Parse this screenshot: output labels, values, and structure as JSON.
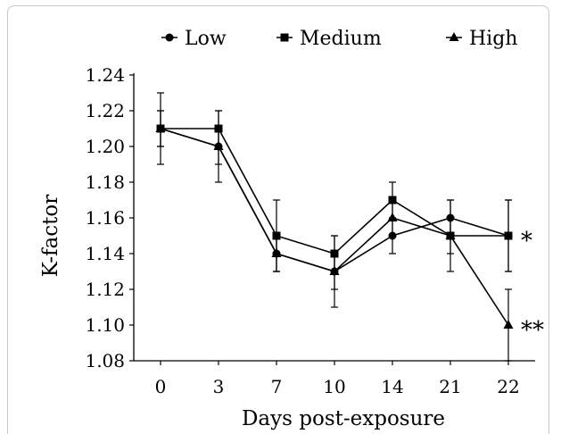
{
  "chart_data": {
    "type": "line",
    "xlabel": "Days post-exposure",
    "ylabel": "K-factor",
    "categories": [
      "0",
      "3",
      "7",
      "10",
      "14",
      "21",
      "22"
    ],
    "ylim": [
      1.08,
      1.24
    ],
    "yticks": [
      "1.08",
      "1.10",
      "1.12",
      "1.14",
      "1.16",
      "1.18",
      "1.20",
      "1.22",
      "1.24"
    ],
    "legend_position": "top",
    "series": [
      {
        "name": "Low",
        "marker": "circle",
        "values": [
          1.21,
          1.2,
          1.14,
          1.13,
          1.15,
          1.16,
          1.15
        ],
        "errors": [
          0.02,
          0.02,
          0.01,
          0.02,
          0.01,
          0.01,
          0.02
        ]
      },
      {
        "name": "Medium",
        "marker": "square",
        "values": [
          1.21,
          1.21,
          1.15,
          1.14,
          1.17,
          1.15,
          1.15
        ],
        "errors": [
          0.01,
          0.01,
          0.02,
          0.01,
          0.01,
          0.02,
          0.02
        ]
      },
      {
        "name": "High",
        "marker": "triangle",
        "values": [
          1.21,
          1.2,
          1.14,
          1.13,
          1.16,
          1.15,
          1.1
        ],
        "errors": [
          0.01,
          0.01,
          0.01,
          0.01,
          0.01,
          0.01,
          0.02
        ]
      }
    ],
    "annotations": [
      {
        "text": "*",
        "category": "22",
        "y": 1.15
      },
      {
        "text": "**",
        "category": "22",
        "y": 1.1
      }
    ],
    "colors": {
      "line": "#000000",
      "frame": "#c8c8c8"
    }
  }
}
